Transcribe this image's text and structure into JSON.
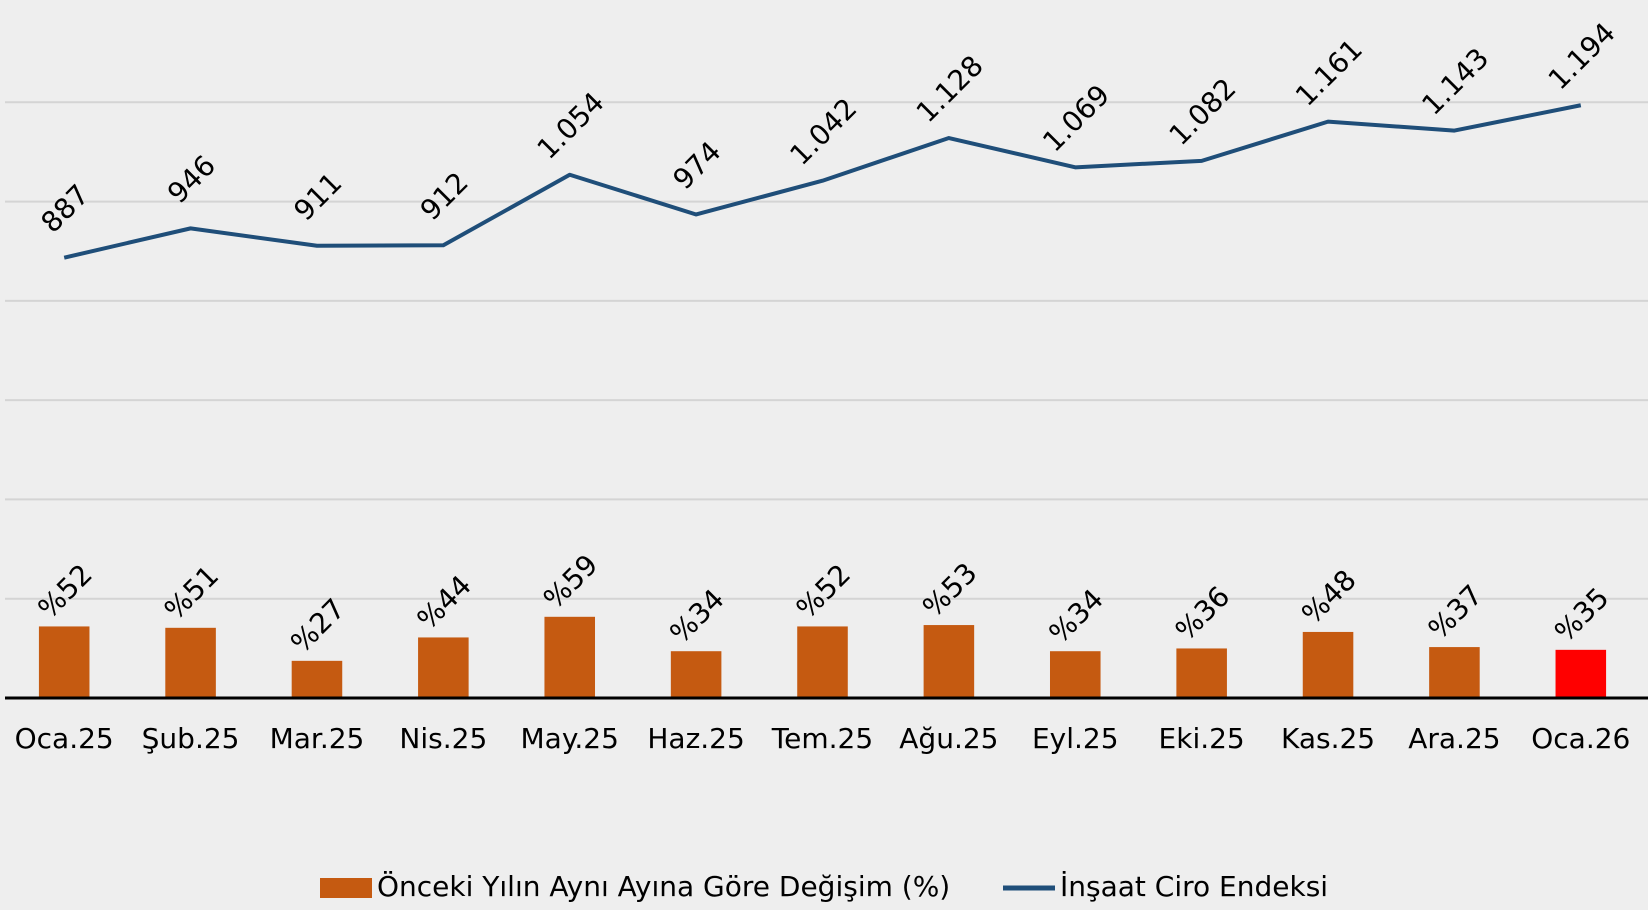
{
  "chart_data": {
    "type": "combo",
    "categories": [
      "Oca.25",
      "Şub.25",
      "Mar.25",
      "Nis.25",
      "May.25",
      "Haz.25",
      "Tem.25",
      "Ağu.25",
      "Eyl.25",
      "Eki.25",
      "Kas.25",
      "Ara.25",
      "Oca.26"
    ],
    "series": [
      {
        "name": "Önceki Yılın Aynı Ayına Göre Değişim (%)",
        "type": "bar",
        "color": "#c55a11",
        "colors": [
          "#c55a11",
          "#c55a11",
          "#c55a11",
          "#c55a11",
          "#c55a11",
          "#c55a11",
          "#c55a11",
          "#c55a11",
          "#c55a11",
          "#c55a11",
          "#c55a11",
          "#c55a11",
          "#ff0000"
        ],
        "values": [
          52,
          51,
          27,
          44,
          59,
          34,
          52,
          53,
          34,
          36,
          48,
          37,
          35
        ],
        "value_labels": [
          "%52",
          "%51",
          "%27",
          "%44",
          "%59",
          "%34",
          "%52",
          "%53",
          "%34",
          "%36",
          "%48",
          "%37",
          "%35"
        ]
      },
      {
        "name": "İnşaat Ciro Endeksi",
        "type": "line",
        "color": "#1f4e79",
        "axis": "y2",
        "values": [
          887,
          946,
          911,
          912,
          1054,
          974,
          1042,
          1128,
          1069,
          1082,
          1161,
          1143,
          1194
        ],
        "value_labels": [
          "887",
          "946",
          "911",
          "912",
          "1.054",
          "974",
          "1.042",
          "1.128",
          "1.069",
          "1.082",
          "1.161",
          "1.143",
          "1.194"
        ]
      }
    ],
    "ylim": [
      0,
      505
    ],
    "y2lim": [
      0,
      1400
    ],
    "y2ticks": [
      200,
      400,
      600,
      800,
      1000,
      1200
    ],
    "grid": true,
    "legend": "bottom"
  }
}
